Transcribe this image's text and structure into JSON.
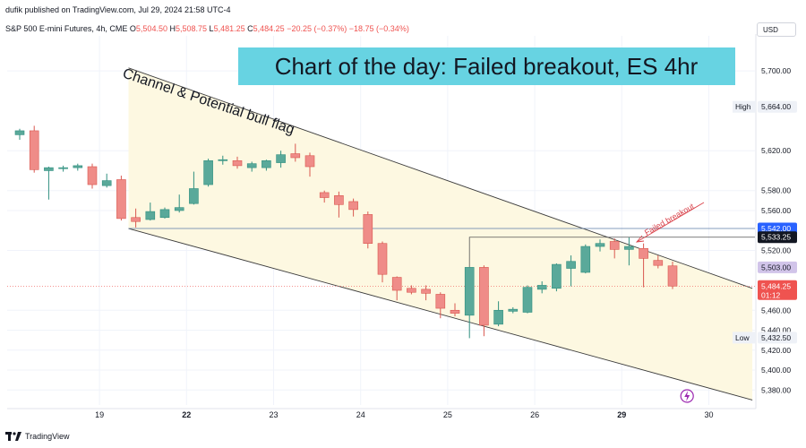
{
  "header": {
    "published": "dufik published on TradingView.com, Jul 29, 2024 21:58 UTC-4",
    "symbol": "S&P 500 E-mini Futures, 4h, CME",
    "o_label": "O",
    "o": "5,504.50",
    "h_label": "H",
    "h": "5,508.75",
    "l_label": "L",
    "l": "5,481.25",
    "c_label": "C",
    "c": "5,484.25",
    "change": "−20.25 (−0.37%)",
    "change2": "−18.75 (−0.34%)",
    "currency": "USD"
  },
  "footer": {
    "brand": "TradingView"
  },
  "colors": {
    "up": "#5aa99a",
    "down": "#ef8c88",
    "channel_fill": "#fdf8e1",
    "title_bg": "#67d3e2"
  },
  "chart_data": {
    "type": "candlestick",
    "title": "Chart of the day: Failed breakout, ES 4hr",
    "ylim": [
      5365,
      5728
    ],
    "y_ticks": [
      "5,380.00",
      "5,400.00",
      "5,420.00",
      "5,440.00",
      "5,460.00",
      "5,520.00",
      "5,560.00",
      "5,580.00",
      "5,620.00",
      "5,700.00"
    ],
    "x_ticks": [
      {
        "label": "19",
        "at": 5.5,
        "bold": false
      },
      {
        "label": "22",
        "at": 11.5,
        "bold": true
      },
      {
        "label": "23",
        "at": 17.5,
        "bold": false
      },
      {
        "label": "24",
        "at": 23.5,
        "bold": false
      },
      {
        "label": "25",
        "at": 29.5,
        "bold": false
      },
      {
        "label": "26",
        "at": 35.5,
        "bold": false
      },
      {
        "label": "29",
        "at": 41.5,
        "bold": true
      },
      {
        "label": "30",
        "at": 47.5,
        "bold": false
      }
    ],
    "candles": [
      {
        "o": 5636,
        "h": 5642,
        "l": 5631,
        "c": 5640
      },
      {
        "o": 5640,
        "h": 5645,
        "l": 5598,
        "c": 5601
      },
      {
        "o": 5600,
        "h": 5604,
        "l": 5571,
        "c": 5603
      },
      {
        "o": 5602,
        "h": 5605,
        "l": 5599,
        "c": 5603
      },
      {
        "o": 5603,
        "h": 5607,
        "l": 5600,
        "c": 5605
      },
      {
        "o": 5604,
        "h": 5607,
        "l": 5582,
        "c": 5586
      },
      {
        "o": 5585,
        "h": 5597,
        "l": 5583,
        "c": 5590
      },
      {
        "o": 5591,
        "h": 5595,
        "l": 5550,
        "c": 5552
      },
      {
        "o": 5553,
        "h": 5562,
        "l": 5543,
        "c": 5549
      },
      {
        "o": 5551,
        "h": 5568,
        "l": 5550,
        "c": 5559
      },
      {
        "o": 5553,
        "h": 5563,
        "l": 5552,
        "c": 5561
      },
      {
        "o": 5560,
        "h": 5576,
        "l": 5558,
        "c": 5563
      },
      {
        "o": 5567,
        "h": 5599,
        "l": 5566,
        "c": 5582
      },
      {
        "o": 5586,
        "h": 5612,
        "l": 5584,
        "c": 5610
      },
      {
        "o": 5610,
        "h": 5615,
        "l": 5606,
        "c": 5611
      },
      {
        "o": 5610,
        "h": 5614,
        "l": 5602,
        "c": 5605
      },
      {
        "o": 5603,
        "h": 5609,
        "l": 5599,
        "c": 5607
      },
      {
        "o": 5603,
        "h": 5611,
        "l": 5600,
        "c": 5610
      },
      {
        "o": 5608,
        "h": 5620,
        "l": 5603,
        "c": 5616
      },
      {
        "o": 5617,
        "h": 5627,
        "l": 5609,
        "c": 5613
      },
      {
        "o": 5615,
        "h": 5618,
        "l": 5594,
        "c": 5604
      },
      {
        "o": 5578,
        "h": 5580,
        "l": 5568,
        "c": 5573
      },
      {
        "o": 5575,
        "h": 5579,
        "l": 5553,
        "c": 5566
      },
      {
        "o": 5569,
        "h": 5572,
        "l": 5554,
        "c": 5561
      },
      {
        "o": 5556,
        "h": 5559,
        "l": 5522,
        "c": 5527
      },
      {
        "o": 5527,
        "h": 5529,
        "l": 5488,
        "c": 5496
      },
      {
        "o": 5493,
        "h": 5494,
        "l": 5470,
        "c": 5480
      },
      {
        "o": 5482,
        "h": 5485,
        "l": 5476,
        "c": 5478
      },
      {
        "o": 5481,
        "h": 5485,
        "l": 5470,
        "c": 5477
      },
      {
        "o": 5476,
        "h": 5478,
        "l": 5452,
        "c": 5462
      },
      {
        "o": 5460,
        "h": 5467,
        "l": 5454,
        "c": 5457
      },
      {
        "o": 5455,
        "h": 5503,
        "l": 5432,
        "c": 5503
      },
      {
        "o": 5503,
        "h": 5505,
        "l": 5434,
        "c": 5445
      },
      {
        "o": 5446,
        "h": 5469,
        "l": 5444,
        "c": 5460
      },
      {
        "o": 5459,
        "h": 5463,
        "l": 5457,
        "c": 5461
      },
      {
        "o": 5458,
        "h": 5485,
        "l": 5457,
        "c": 5483
      },
      {
        "o": 5481,
        "h": 5489,
        "l": 5477,
        "c": 5485
      },
      {
        "o": 5482,
        "h": 5507,
        "l": 5479,
        "c": 5506
      },
      {
        "o": 5502,
        "h": 5515,
        "l": 5484,
        "c": 5509
      },
      {
        "o": 5498,
        "h": 5526,
        "l": 5497,
        "c": 5524
      },
      {
        "o": 5524,
        "h": 5531,
        "l": 5519,
        "c": 5527
      },
      {
        "o": 5529,
        "h": 5532,
        "l": 5512,
        "c": 5521
      },
      {
        "o": 5521,
        "h": 5533,
        "l": 5505,
        "c": 5524
      },
      {
        "o": 5522,
        "h": 5527,
        "l": 5483,
        "c": 5512
      },
      {
        "o": 5510,
        "h": 5515,
        "l": 5502,
        "c": 5505
      },
      {
        "o": 5504.5,
        "h": 5508.75,
        "l": 5481.25,
        "c": 5484.25
      }
    ],
    "price_labels": [
      {
        "label": "High",
        "value": 5664.0,
        "text": "5,664.00",
        "style": "light"
      },
      {
        "value": 5542.0,
        "text": "5,542.00",
        "style": "blue"
      },
      {
        "value": 5533.25,
        "text": "5,533.25",
        "style": "dark"
      },
      {
        "value": 5503.0,
        "text": "5,503.00",
        "style": "violet"
      },
      {
        "value": 5484.25,
        "text": "5,484.25",
        "sub": "01:12",
        "style": "red"
      },
      {
        "label": "Low",
        "value": 5432.5,
        "text": "5,432.50",
        "style": "light"
      }
    ],
    "annotations": {
      "channel_label": "Channel & Potential bull flag",
      "failed_breakout": "Failed breakout"
    },
    "channel": {
      "x0": 7.5,
      "x1": 50.5,
      "upper": [
        5703,
        5482
      ],
      "lower": [
        5542,
        5370
      ]
    }
  }
}
